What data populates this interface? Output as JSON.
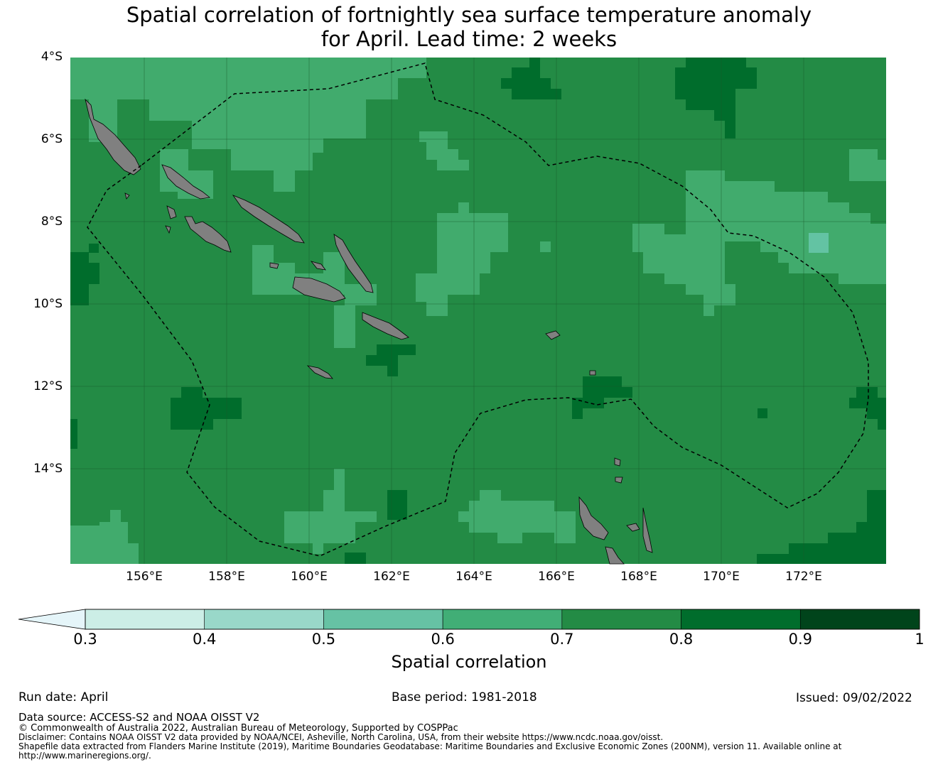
{
  "title_line1": "Spatial correlation of fortnightly sea surface temperature anomaly",
  "title_line2": "for April. Lead time: 2 weeks",
  "map": {
    "lat_labels": [
      "4°S",
      "6°S",
      "8°S",
      "10°S",
      "12°S",
      "14°S"
    ],
    "lon_labels": [
      "156°E",
      "158°E",
      "160°E",
      "162°E",
      "164°E",
      "166°E",
      "168°E",
      "170°E",
      "172°E"
    ],
    "lat_extent": [
      -4,
      -16.3
    ],
    "lon_extent": [
      154.2,
      174.0
    ],
    "colors": {
      "band_0_6_0_7": "#41ab6d",
      "band_0_7_0_8": "#238b45",
      "band_0_8_0_9": "#006d2c",
      "band_0_5_0_6": "#63c3a3",
      "land": "#808080",
      "eez_boundary": "#000000",
      "gridlines": "#1a5a2a"
    }
  },
  "colorbar": {
    "title": "Spatial correlation",
    "ticks": [
      "0.3",
      "0.4",
      "0.5",
      "0.6",
      "0.7",
      "0.8",
      "0.9",
      "1"
    ],
    "colors": [
      "#cceee6",
      "#99d8c9",
      "#66c2a4",
      "#41ae76",
      "#238b45",
      "#006d2c",
      "#00441b"
    ],
    "extend_color": "#e5f5f9"
  },
  "info": {
    "run_date": "Run date: April",
    "base_period": "Base period: 1981-2018",
    "issued": "Issued: 09/02/2022",
    "data_source": "Data source: ACCESS-S2 and NOAA OISST V2",
    "copyright": "© Commonwealth of Australia 2022, Australian Bureau of Meteorology, Supported by COSPPac",
    "disclaimer": "Disclaimer: Contains NOAA OISST V2 data provided by NOAA/NCEI, Asheville, North Carolina, USA, from their website https://www.ncdc.noaa.gov/oisst.",
    "shapefile_1": "Shapefile data extracted from Flanders Marine Institute (2019), Maritime Boundaries Geodatabase: Maritime Boundaries and Exclusive Economic Zones (200NM), version 11. Available online at",
    "shapefile_2": "http://www.marineregions.org/."
  }
}
